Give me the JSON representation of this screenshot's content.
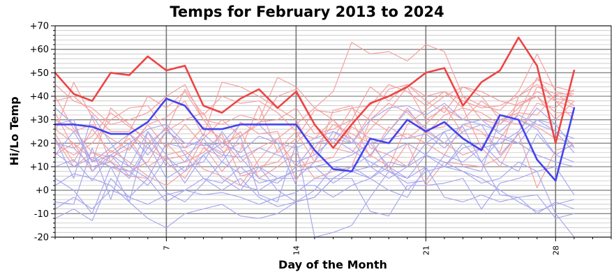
{
  "chart_data": {
    "type": "line",
    "title": "Temps for February 2013 to 2024",
    "xlabel": "Day of the Month",
    "ylabel": "Hi/Lo Temp",
    "xlim": [
      1,
      31
    ],
    "ylim": [
      -20,
      70
    ],
    "y_ticks": [
      -20,
      -10,
      0,
      10,
      20,
      30,
      40,
      50,
      60,
      70
    ],
    "y_tick_labels": [
      "-20",
      "-10",
      "+0",
      "+10",
      "+20",
      "+30",
      "+40",
      "+50",
      "+60",
      "+70"
    ],
    "x_ticks": [
      7,
      14,
      21,
      28
    ],
    "x_tick_labels": [
      "7",
      "14",
      "21",
      "28"
    ],
    "grid": true,
    "colors": {
      "highlight_high": "#ee4444",
      "highlight_low": "#4444ee",
      "past_high": "#f4a0a0",
      "past_low": "#a8a8ee",
      "major_grid": "#888888",
      "minor_grid": "#bbbbbb",
      "week_grid": "#777777"
    },
    "highlight_series": [
      {
        "kind": "high",
        "x": [
          1,
          2,
          3,
          4,
          5,
          6,
          7,
          8,
          9,
          10,
          11,
          12,
          13,
          14,
          15,
          16,
          17,
          18,
          19,
          20,
          21,
          22,
          23,
          24,
          25,
          26,
          27,
          28,
          29
        ],
        "values": [
          50,
          41,
          38,
          50,
          49,
          57,
          51,
          53,
          36,
          33,
          39,
          43,
          35,
          42,
          28,
          18,
          28,
          37,
          40,
          44,
          50,
          52,
          36,
          46,
          51,
          65,
          53,
          20,
          51
        ]
      },
      {
        "kind": "low",
        "x": [
          1,
          2,
          3,
          4,
          5,
          6,
          7,
          8,
          9,
          10,
          11,
          12,
          13,
          14,
          15,
          16,
          17,
          18,
          19,
          20,
          21,
          22,
          23,
          24,
          25,
          26,
          27,
          28,
          29
        ],
        "values": [
          28,
          28,
          27,
          24,
          24,
          29,
          39,
          36,
          26,
          26,
          28,
          28,
          28,
          28,
          17,
          9,
          8,
          22,
          20,
          30,
          25,
          29,
          22,
          17,
          32,
          30,
          13,
          4,
          35
        ]
      }
    ],
    "past_high_series": [
      [
        45,
        38,
        35,
        28,
        30,
        33,
        40,
        45,
        30,
        20,
        23,
        28,
        40,
        43,
        28,
        20,
        30,
        44,
        38,
        45,
        38,
        33,
        44,
        40,
        30,
        33,
        48,
        38,
        30
      ],
      [
        38,
        40,
        33,
        25,
        25,
        40,
        35,
        42,
        30,
        28,
        32,
        30,
        48,
        44,
        35,
        42,
        63,
        58,
        59,
        55,
        62,
        59,
        40,
        36,
        34,
        42,
        58,
        42,
        40
      ],
      [
        30,
        25,
        28,
        22,
        17,
        28,
        31,
        38,
        23,
        46,
        44,
        40,
        35,
        30,
        15,
        22,
        35,
        36,
        45,
        42,
        36,
        42,
        38,
        35,
        36,
        40,
        47,
        44,
        42
      ],
      [
        20,
        15,
        20,
        30,
        35,
        36,
        25,
        43,
        32,
        40,
        37,
        38,
        33,
        25,
        22,
        30,
        22,
        15,
        10,
        28,
        34,
        40,
        44,
        42,
        38,
        36,
        40,
        30,
        38
      ],
      [
        35,
        28,
        12,
        35,
        28,
        20,
        26,
        18,
        27,
        22,
        12,
        18,
        22,
        28,
        35,
        30,
        20,
        32,
        43,
        45,
        40,
        42,
        35,
        33,
        28,
        35,
        42,
        38,
        35
      ],
      [
        25,
        46,
        31,
        12,
        8,
        12,
        25,
        30,
        33,
        18,
        25,
        10,
        12,
        20,
        28,
        18,
        16,
        26,
        34,
        44,
        30,
        35,
        30,
        38,
        32,
        30,
        27,
        22,
        20
      ],
      [
        22,
        10,
        16,
        12,
        24,
        18,
        13,
        15,
        20,
        16,
        20,
        5,
        10,
        16,
        5,
        8,
        10,
        30,
        37,
        33,
        25,
        20,
        15,
        18,
        30,
        28,
        44,
        41,
        36
      ],
      [
        26,
        20,
        8,
        17,
        12,
        6,
        2,
        8,
        22,
        30,
        23,
        29,
        30,
        35,
        24,
        26,
        30,
        14,
        27,
        22,
        28,
        36,
        24,
        24,
        22,
        33,
        32,
        41,
        41
      ],
      [
        40,
        26,
        16,
        14,
        18,
        28,
        18,
        28,
        19,
        8,
        17,
        36,
        16,
        22,
        34,
        33,
        35,
        30,
        25,
        35,
        24,
        32,
        35,
        18,
        10,
        25,
        37,
        35,
        43
      ],
      [
        24,
        12,
        26,
        16,
        22,
        10,
        15,
        17,
        9,
        6,
        2,
        13,
        22,
        10,
        12,
        14,
        27,
        22,
        8,
        20,
        2,
        12,
        11,
        10,
        14,
        24,
        1,
        17,
        19
      ],
      [
        15,
        20,
        13,
        10,
        6,
        5,
        20,
        12,
        16,
        24,
        6,
        8,
        17,
        25,
        12,
        34,
        36,
        18,
        15,
        10,
        26,
        27,
        40,
        30,
        28,
        37,
        40,
        33,
        33
      ],
      [
        33,
        18,
        23,
        33,
        27,
        22,
        12,
        5,
        18,
        14,
        29,
        24,
        25,
        4,
        18,
        28,
        24,
        20,
        22,
        24,
        20,
        15,
        28,
        25,
        16,
        40,
        45,
        39,
        38
      ]
    ],
    "past_low_series": [
      [
        10,
        13,
        4,
        15,
        10,
        5,
        20,
        18,
        22,
        12,
        7,
        10,
        0,
        -5,
        0,
        10,
        8,
        5,
        12,
        10,
        15,
        12,
        8,
        3,
        5,
        12,
        8,
        -10,
        -20
      ],
      [
        5,
        0,
        -10,
        10,
        -5,
        25,
        10,
        12,
        24,
        17,
        2,
        0,
        5,
        8,
        10,
        12,
        15,
        20,
        10,
        0,
        8,
        10,
        20,
        12,
        -2,
        -3,
        -10,
        -5,
        -8
      ],
      [
        2,
        7,
        5,
        2,
        -5,
        -12,
        -16,
        -10,
        -8,
        -6,
        -11,
        -12,
        -10,
        -5,
        -3,
        5,
        5,
        -9,
        -11,
        2,
        2,
        3,
        5,
        -8,
        3,
        5,
        8,
        10,
        -2
      ],
      [
        -8,
        -3,
        -8,
        0,
        -3,
        5,
        -5,
        0,
        5,
        3,
        10,
        3,
        5,
        8,
        10,
        3,
        8,
        10,
        16,
        20,
        15,
        10,
        8,
        5,
        0,
        -5,
        -9,
        -6,
        -4
      ],
      [
        15,
        25,
        12,
        18,
        24,
        15,
        25,
        20,
        19,
        20,
        16,
        23,
        20,
        18,
        22,
        25,
        20,
        20,
        22,
        22,
        24,
        18,
        25,
        28,
        15,
        24,
        30,
        28,
        18
      ],
      [
        -5,
        -6,
        18,
        -4,
        20,
        10,
        -1,
        -5,
        3,
        12,
        23,
        -2,
        -5,
        20,
        -20,
        -18,
        -15,
        -3,
        8,
        5,
        10,
        -3,
        -5,
        -2,
        -5,
        -3,
        -2,
        -12,
        -10
      ],
      [
        -12,
        -8,
        -13,
        5,
        -3,
        -6,
        -2,
        0,
        -2,
        -1,
        -3,
        -6,
        -3,
        -1,
        5,
        5,
        10,
        5,
        0,
        -3,
        10,
        10,
        18,
        20,
        12,
        8,
        24,
        15,
        12
      ],
      [
        22,
        5,
        32,
        20,
        10,
        25,
        15,
        3,
        15,
        5,
        0,
        10,
        5,
        5,
        12,
        25,
        22,
        10,
        5,
        10,
        20,
        25,
        10,
        8,
        30,
        30,
        26,
        15,
        20
      ],
      [
        28,
        30,
        8,
        15,
        20,
        26,
        28,
        20,
        20,
        15,
        14,
        5,
        3,
        10,
        20,
        22,
        17,
        12,
        8,
        3,
        4,
        15,
        12,
        18,
        20,
        25,
        35,
        28,
        18
      ],
      [
        35,
        28,
        12,
        15,
        6,
        20,
        5,
        10,
        12,
        25,
        14,
        18,
        15,
        12,
        15,
        22,
        20,
        30,
        35,
        36,
        32,
        37,
        30,
        28,
        25,
        32,
        28,
        25,
        22
      ],
      [
        20,
        18,
        10,
        12,
        5,
        18,
        27,
        15,
        5,
        0,
        5,
        -3,
        -7,
        -5,
        -3,
        5,
        10,
        15,
        25,
        34,
        26,
        20,
        28,
        30,
        24,
        20,
        15,
        12,
        10
      ],
      [
        16,
        10,
        14,
        10,
        8,
        2,
        14,
        8,
        15,
        20,
        28,
        28,
        20,
        2,
        2,
        -3,
        2,
        5,
        10,
        5,
        15,
        25,
        27,
        12,
        22,
        20,
        30,
        25,
        16
      ]
    ]
  }
}
